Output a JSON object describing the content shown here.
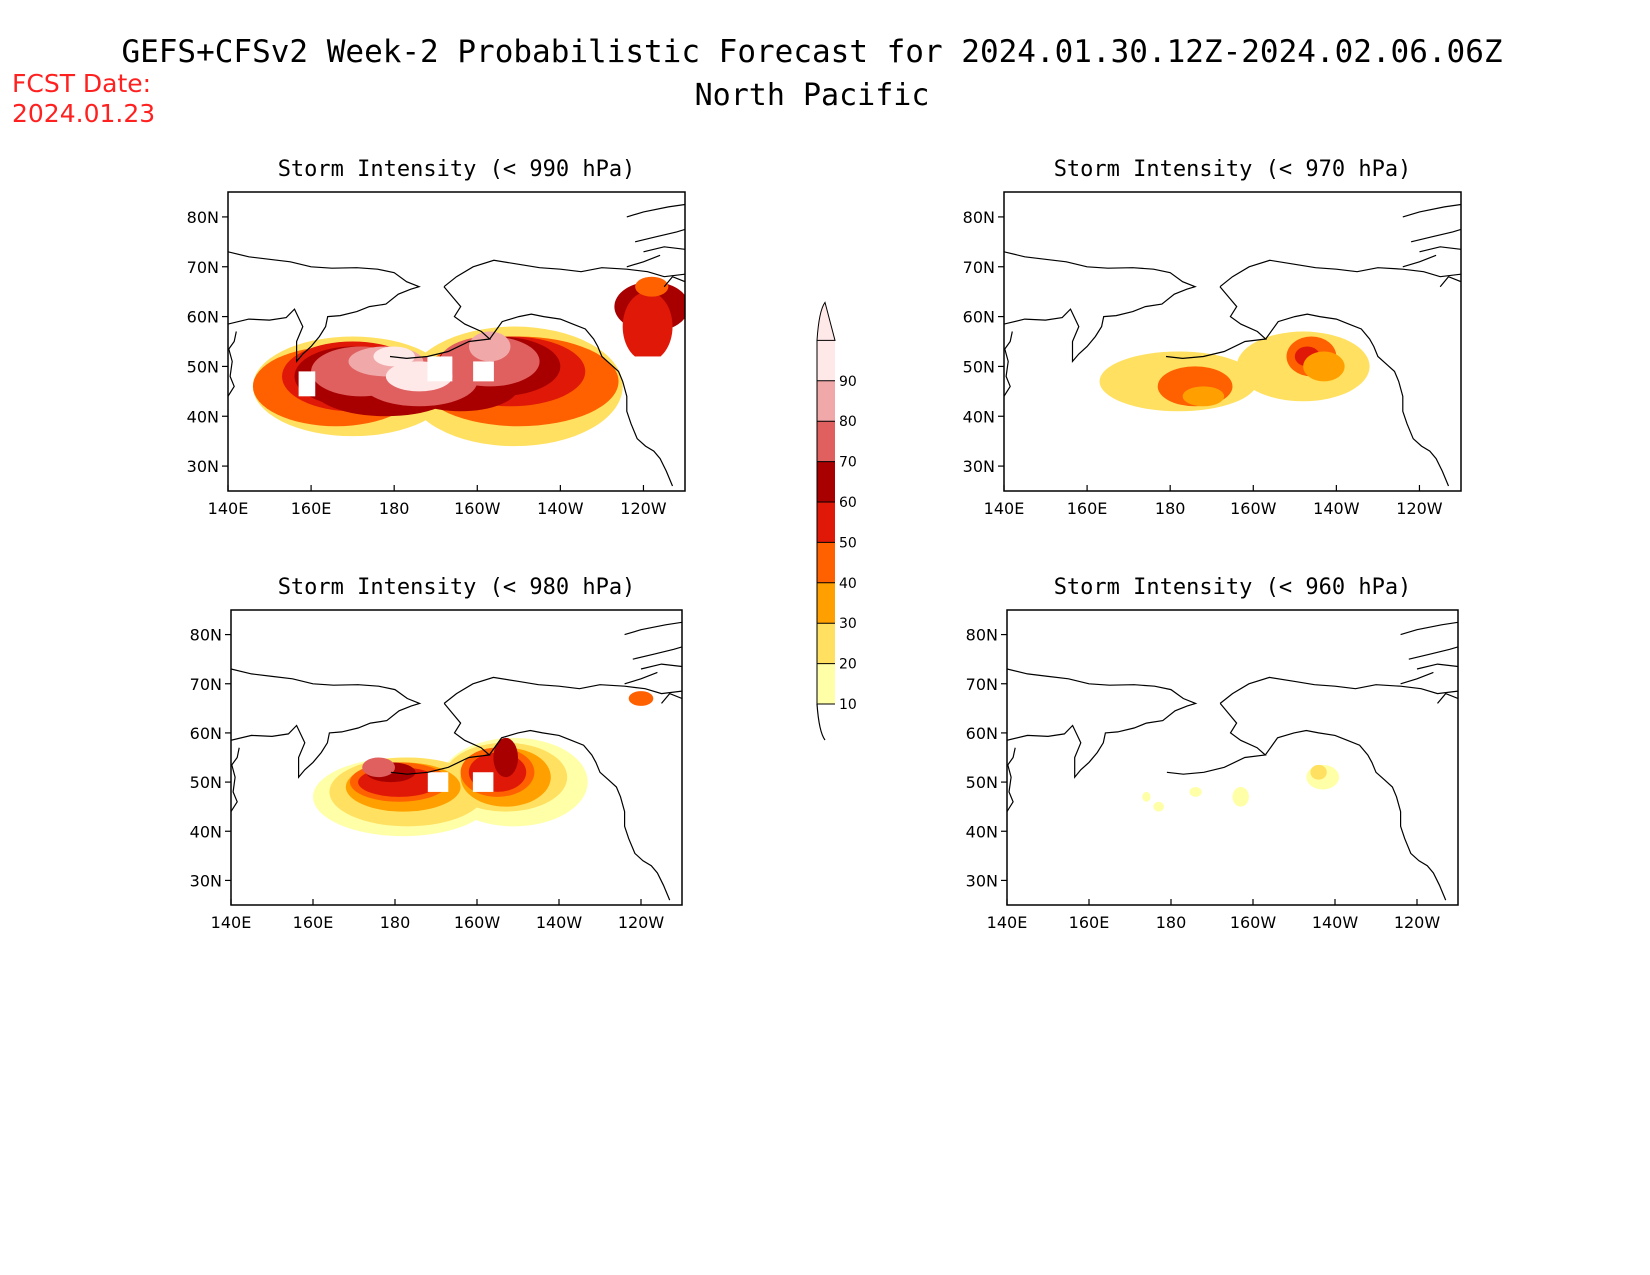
{
  "title": {
    "main": "GEFS+CFSv2 Week-2 Probabilistic Forecast for 2024.01.30.12Z-2024.02.06.06Z",
    "region": "North Pacific"
  },
  "forecast_date": {
    "label": "FCST Date:",
    "value": "2024.01.23",
    "color": "#ff2020"
  },
  "lon_ticks": [
    "140E",
    "160E",
    "180",
    "160W",
    "140W",
    "120W"
  ],
  "lat_ticks": [
    "80N",
    "70N",
    "60N",
    "50N",
    "40N",
    "30N"
  ],
  "colorbar": {
    "levels": [
      10,
      20,
      30,
      40,
      50,
      60,
      70,
      80,
      90
    ],
    "colors": [
      "#ffffa8",
      "#ffe060",
      "#ffa000",
      "#ff6000",
      "#e01808",
      "#a80000",
      "#e06060",
      "#f0a8a8",
      "#ffe8e8"
    ]
  },
  "panels": [
    {
      "title": "Storm Intensity (< 990 hPa)",
      "threshold_hpa": 990
    },
    {
      "title": "Storm Intensity (< 970 hPa)",
      "threshold_hpa": 970
    },
    {
      "title": "Storm Intensity (< 980 hPa)",
      "threshold_hpa": 980
    },
    {
      "title": "Storm Intensity (< 960 hPa)",
      "threshold_hpa": 960
    }
  ]
}
